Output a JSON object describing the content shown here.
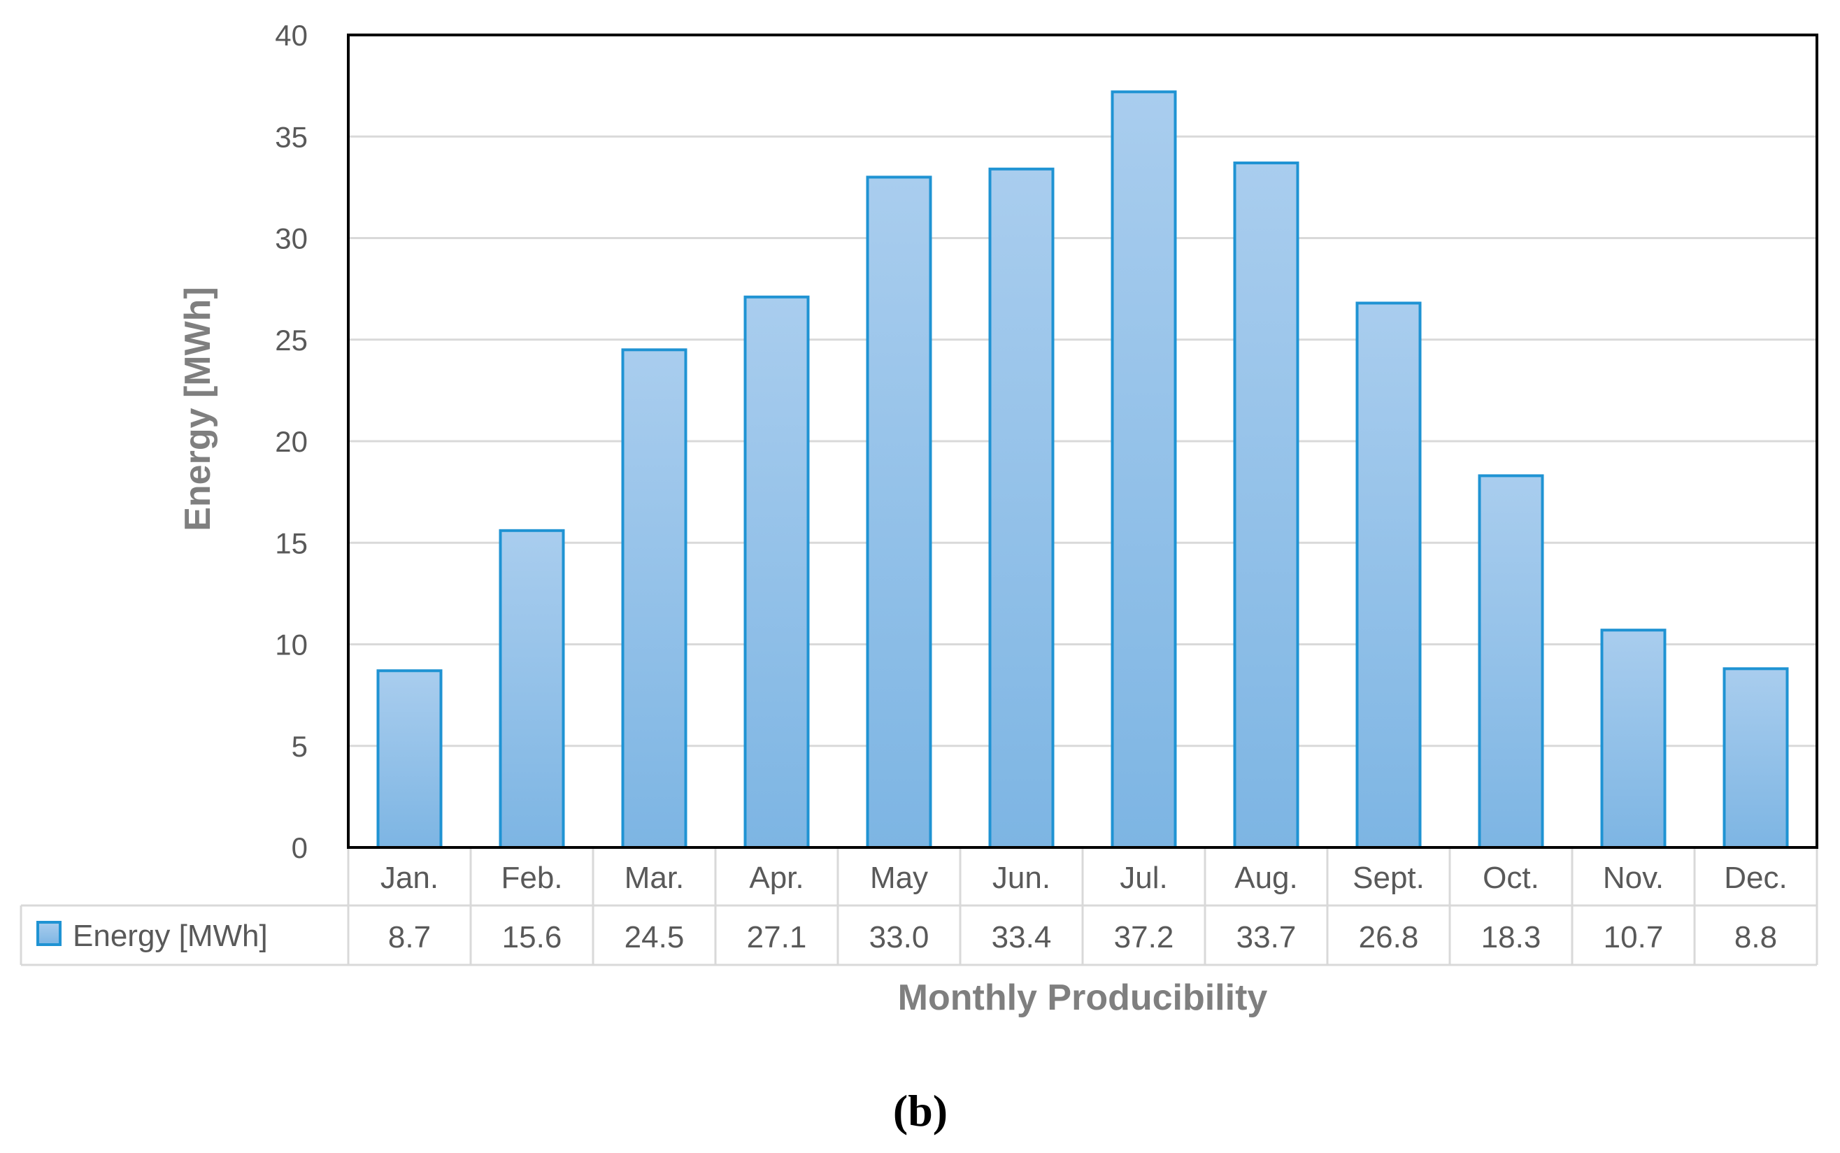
{
  "chart_data": {
    "type": "bar",
    "categories": [
      "Jan.",
      "Feb.",
      "Mar.",
      "Apr.",
      "May",
      "Jun.",
      "Jul.",
      "Aug.",
      "Sept.",
      "Oct.",
      "Nov.",
      "Dec."
    ],
    "series": [
      {
        "name": "Energy [MWh]",
        "values": [
          8.7,
          15.6,
          24.5,
          27.1,
          33.0,
          33.4,
          37.2,
          33.7,
          26.8,
          18.3,
          10.7,
          8.8
        ],
        "display_values": [
          "8.7",
          "15.6",
          "24.5",
          "27.1",
          "33.0",
          "33.4",
          "37.2",
          "33.7",
          "26.8",
          "18.3",
          "10.7",
          "8.8"
        ]
      }
    ],
    "title": "",
    "xlabel": "Monthly Producibility",
    "ylabel": "Energy [MWh]",
    "ylim": [
      0,
      40
    ],
    "yticks": [
      "0",
      "5",
      "10",
      "15",
      "20",
      "25",
      "30",
      "35",
      "40"
    ],
    "grid": true,
    "legend": "data-table",
    "colors": {
      "bar_fill_top": "#a9cdee",
      "bar_fill_bottom": "#7db5e3",
      "bar_stroke": "#1f93d3"
    }
  },
  "panel_label": "(b)"
}
